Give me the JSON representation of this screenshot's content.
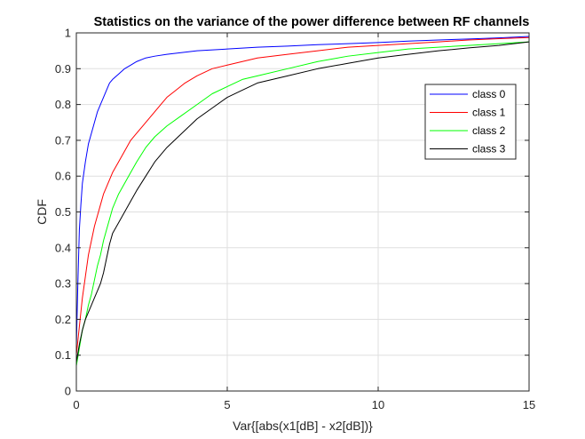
{
  "chart_data": {
    "type": "line",
    "title": "Statistics on the variance of the power difference between RF channels",
    "xlabel": "Var{[abs(x1[dB] - x2[dB])}",
    "ylabel": "CDF",
    "xlim": [
      0,
      15
    ],
    "ylim": [
      0,
      1
    ],
    "grid": true,
    "legend_position": "top-right",
    "x_ticks": [
      "0",
      "5",
      "10",
      "15"
    ],
    "y_ticks": [
      "0",
      "0.1",
      "0.2",
      "0.3",
      "0.4",
      "0.5",
      "0.6",
      "0.7",
      "0.8",
      "0.9",
      "1"
    ],
    "series": [
      {
        "name": "class 0",
        "color": "#0000ff",
        "points": [
          [
            0,
            0.12
          ],
          [
            0.05,
            0.3
          ],
          [
            0.1,
            0.45
          ],
          [
            0.15,
            0.52
          ],
          [
            0.2,
            0.58
          ],
          [
            0.3,
            0.64
          ],
          [
            0.4,
            0.69
          ],
          [
            0.5,
            0.72
          ],
          [
            0.6,
            0.75
          ],
          [
            0.7,
            0.78
          ],
          [
            0.8,
            0.8
          ],
          [
            0.9,
            0.82
          ],
          [
            1.0,
            0.84
          ],
          [
            1.1,
            0.86
          ],
          [
            1.2,
            0.87
          ],
          [
            1.4,
            0.885
          ],
          [
            1.6,
            0.9
          ],
          [
            1.8,
            0.91
          ],
          [
            2.0,
            0.92
          ],
          [
            2.3,
            0.93
          ],
          [
            2.6,
            0.935
          ],
          [
            3.0,
            0.94
          ],
          [
            3.5,
            0.945
          ],
          [
            4.0,
            0.95
          ],
          [
            5.0,
            0.955
          ],
          [
            6.0,
            0.96
          ],
          [
            7.0,
            0.963
          ],
          [
            8.0,
            0.967
          ],
          [
            9.0,
            0.97
          ],
          [
            10.0,
            0.973
          ],
          [
            11.0,
            0.977
          ],
          [
            12.0,
            0.98
          ],
          [
            13.0,
            0.983
          ],
          [
            14.0,
            0.986
          ],
          [
            15.0,
            0.99
          ]
        ]
      },
      {
        "name": "class 1",
        "color": "#ff0000",
        "points": [
          [
            0,
            0.1
          ],
          [
            0.1,
            0.18
          ],
          [
            0.2,
            0.26
          ],
          [
            0.3,
            0.32
          ],
          [
            0.4,
            0.38
          ],
          [
            0.5,
            0.42
          ],
          [
            0.6,
            0.46
          ],
          [
            0.7,
            0.49
          ],
          [
            0.8,
            0.52
          ],
          [
            0.9,
            0.55
          ],
          [
            1.0,
            0.57
          ],
          [
            1.2,
            0.61
          ],
          [
            1.4,
            0.64
          ],
          [
            1.6,
            0.67
          ],
          [
            1.8,
            0.7
          ],
          [
            2.0,
            0.72
          ],
          [
            2.2,
            0.74
          ],
          [
            2.5,
            0.77
          ],
          [
            2.8,
            0.8
          ],
          [
            3.0,
            0.82
          ],
          [
            3.3,
            0.84
          ],
          [
            3.6,
            0.86
          ],
          [
            4.0,
            0.88
          ],
          [
            4.5,
            0.9
          ],
          [
            5.0,
            0.91
          ],
          [
            5.5,
            0.92
          ],
          [
            6.0,
            0.93
          ],
          [
            7.0,
            0.94
          ],
          [
            8.0,
            0.95
          ],
          [
            9.0,
            0.96
          ],
          [
            10.0,
            0.965
          ],
          [
            11.0,
            0.97
          ],
          [
            12.0,
            0.975
          ],
          [
            13.0,
            0.98
          ],
          [
            14.0,
            0.984
          ],
          [
            15.0,
            0.987
          ]
        ]
      },
      {
        "name": "class 2",
        "color": "#00ff00",
        "points": [
          [
            0,
            0.07
          ],
          [
            0.1,
            0.12
          ],
          [
            0.2,
            0.17
          ],
          [
            0.3,
            0.2
          ],
          [
            0.4,
            0.24
          ],
          [
            0.5,
            0.27
          ],
          [
            0.6,
            0.31
          ],
          [
            0.7,
            0.35
          ],
          [
            0.8,
            0.38
          ],
          [
            0.9,
            0.42
          ],
          [
            1.0,
            0.45
          ],
          [
            1.2,
            0.51
          ],
          [
            1.4,
            0.55
          ],
          [
            1.6,
            0.58
          ],
          [
            1.8,
            0.61
          ],
          [
            2.0,
            0.64
          ],
          [
            2.3,
            0.68
          ],
          [
            2.6,
            0.71
          ],
          [
            3.0,
            0.74
          ],
          [
            3.5,
            0.77
          ],
          [
            4.0,
            0.8
          ],
          [
            4.5,
            0.83
          ],
          [
            5.0,
            0.85
          ],
          [
            5.5,
            0.87
          ],
          [
            6.0,
            0.88
          ],
          [
            7.0,
            0.9
          ],
          [
            8.0,
            0.92
          ],
          [
            9.0,
            0.935
          ],
          [
            10.0,
            0.945
          ],
          [
            11.0,
            0.955
          ],
          [
            12.0,
            0.96
          ],
          [
            13.0,
            0.965
          ],
          [
            14.0,
            0.97
          ],
          [
            15.0,
            0.975
          ]
        ]
      },
      {
        "name": "class 3",
        "color": "#000000",
        "points": [
          [
            0,
            0.08
          ],
          [
            0.1,
            0.13
          ],
          [
            0.2,
            0.17
          ],
          [
            0.3,
            0.2
          ],
          [
            0.4,
            0.22
          ],
          [
            0.5,
            0.24
          ],
          [
            0.6,
            0.26
          ],
          [
            0.7,
            0.28
          ],
          [
            0.8,
            0.3
          ],
          [
            0.9,
            0.33
          ],
          [
            1.0,
            0.37
          ],
          [
            1.1,
            0.41
          ],
          [
            1.2,
            0.44
          ],
          [
            1.4,
            0.47
          ],
          [
            1.6,
            0.5
          ],
          [
            1.8,
            0.53
          ],
          [
            2.0,
            0.56
          ],
          [
            2.3,
            0.6
          ],
          [
            2.6,
            0.64
          ],
          [
            3.0,
            0.68
          ],
          [
            3.5,
            0.72
          ],
          [
            4.0,
            0.76
          ],
          [
            4.5,
            0.79
          ],
          [
            5.0,
            0.82
          ],
          [
            5.5,
            0.84
          ],
          [
            6.0,
            0.86
          ],
          [
            7.0,
            0.88
          ],
          [
            8.0,
            0.9
          ],
          [
            9.0,
            0.915
          ],
          [
            10.0,
            0.93
          ],
          [
            11.0,
            0.94
          ],
          [
            12.0,
            0.95
          ],
          [
            13.0,
            0.958
          ],
          [
            14.0,
            0.965
          ],
          [
            15.0,
            0.975
          ]
        ]
      }
    ]
  }
}
